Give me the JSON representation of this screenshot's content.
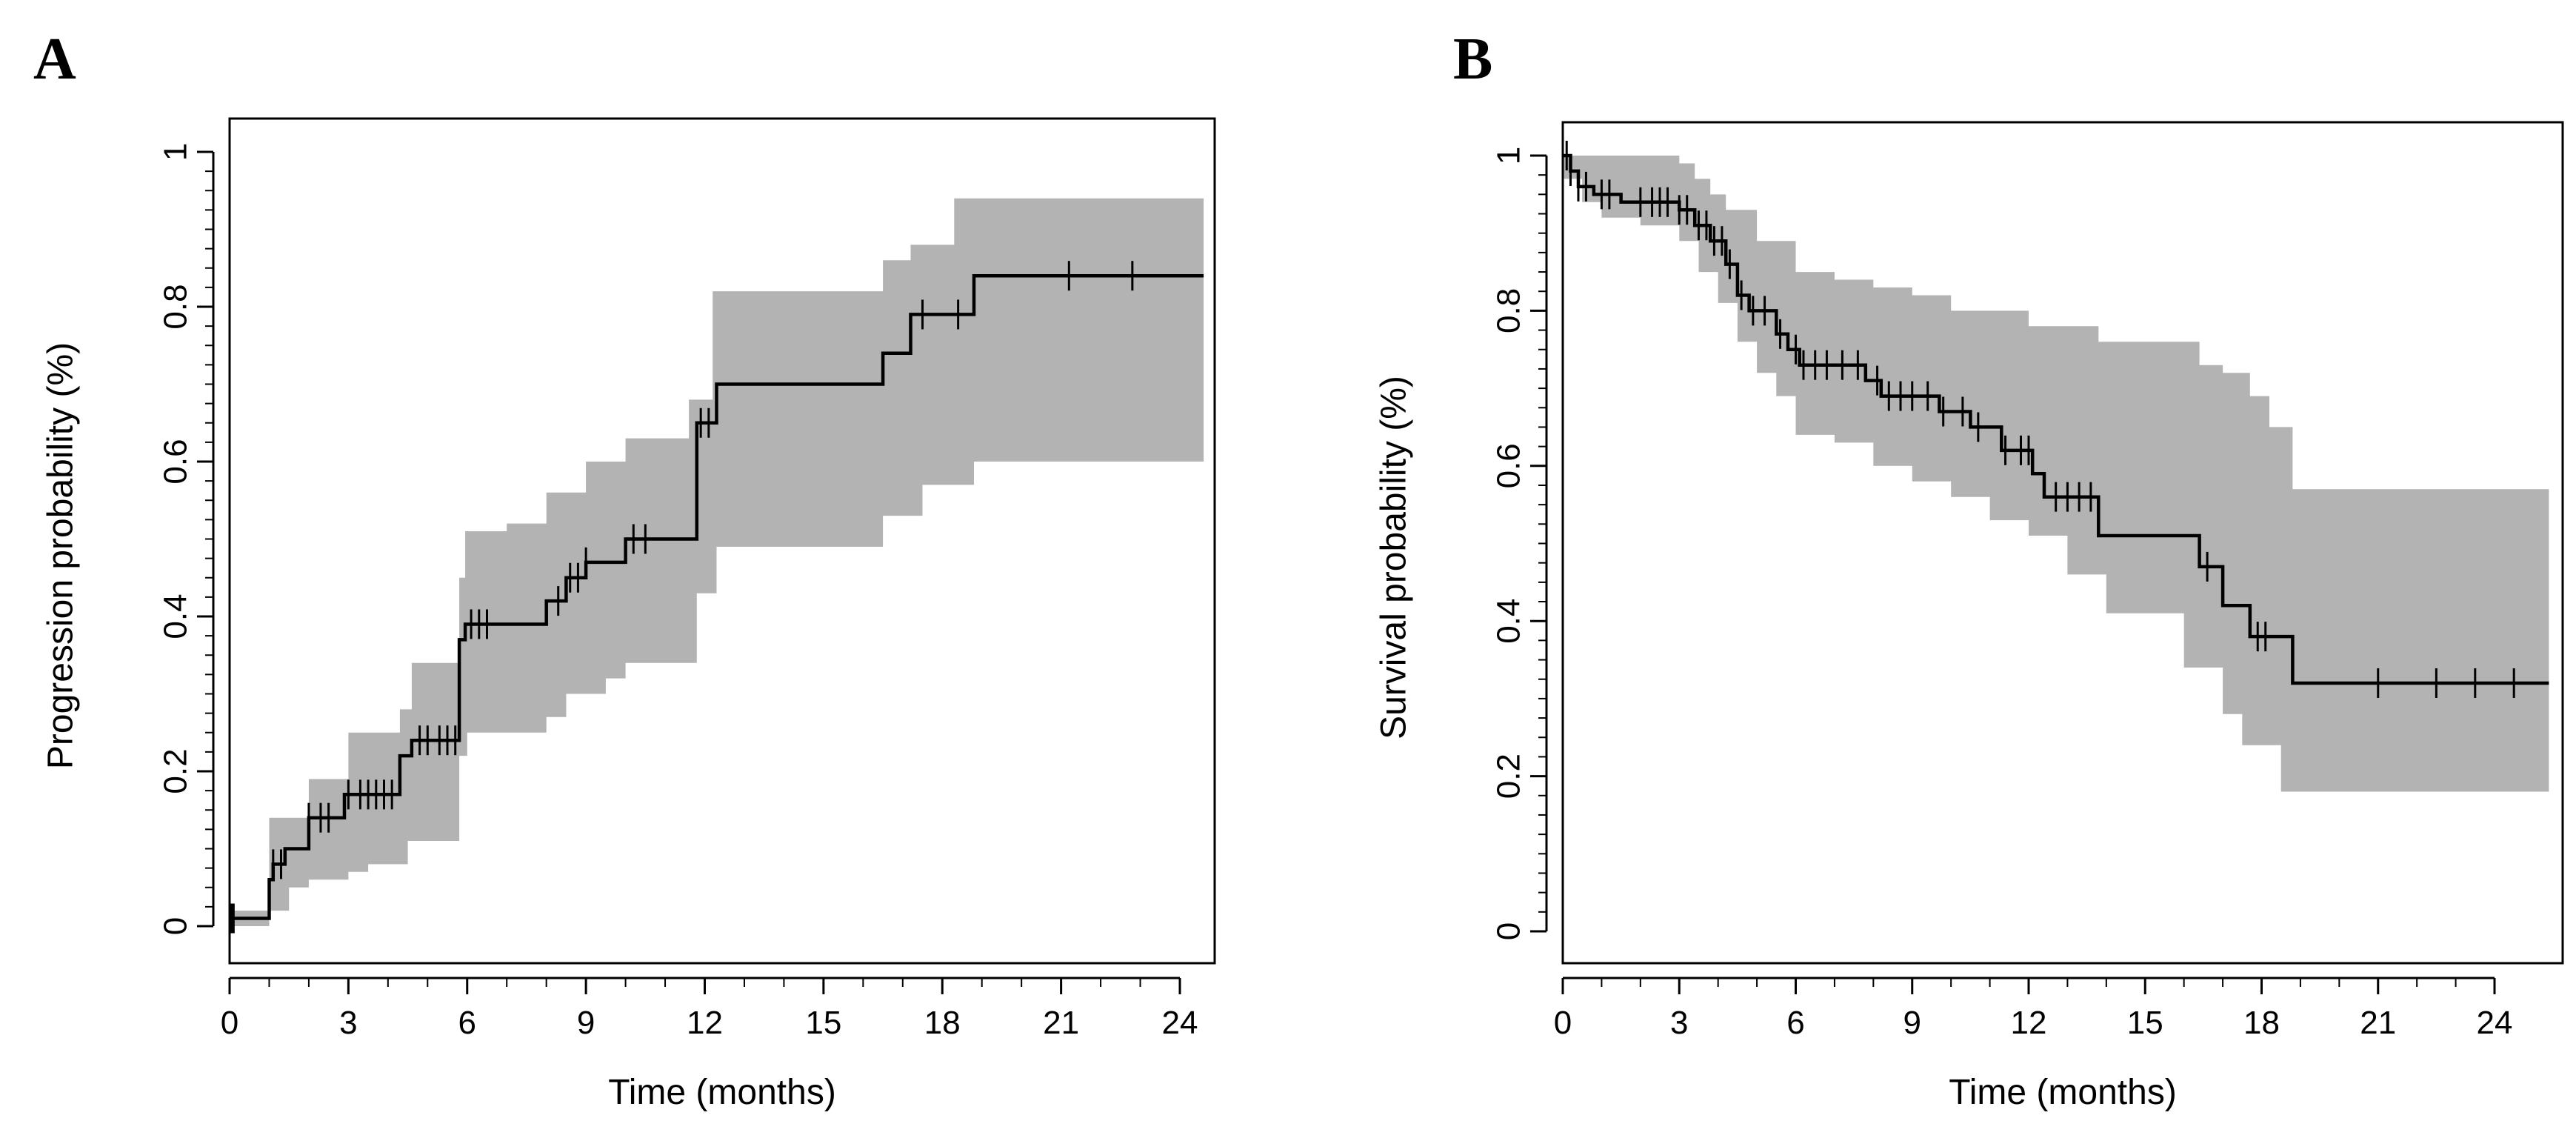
{
  "panels": [
    {
      "label": "A",
      "ylabel": "Progression probability (%)",
      "xlabel": "Time (months)",
      "xticks": [
        "0",
        "3",
        "6",
        "9",
        "12",
        "15",
        "18",
        "21",
        "24"
      ],
      "yticks": [
        "0",
        "0.2",
        "0.4",
        "0.6",
        "0.8",
        "1"
      ]
    },
    {
      "label": "B",
      "ylabel": "Survival probability (%)",
      "xlabel": "Time (months)",
      "xticks": [
        "0",
        "3",
        "6",
        "9",
        "12",
        "15",
        "18",
        "21",
        "24"
      ],
      "yticks": [
        "0",
        "0.2",
        "0.4",
        "0.6",
        "0.8",
        "1"
      ]
    }
  ],
  "chart_data": [
    {
      "type": "line",
      "subtype": "kaplan-meier step curve with shaded confidence band",
      "panel": "A",
      "xlabel": "Time (months)",
      "ylabel": "Progression probability (%)",
      "xlim": [
        0,
        26
      ],
      "ylim": [
        0,
        1.05
      ],
      "xticks": [
        0,
        3,
        6,
        9,
        12,
        15,
        18,
        21,
        24
      ],
      "yticks": [
        0,
        0.2,
        0.4,
        0.6,
        0.8,
        1
      ],
      "band_color": "#b3b3b3",
      "line_color": "#000000",
      "curve": [
        [
          0,
          0.01
        ],
        [
          1.0,
          0.06
        ],
        [
          1.1,
          0.08
        ],
        [
          1.4,
          0.1
        ],
        [
          2.0,
          0.14
        ],
        [
          2.9,
          0.17
        ],
        [
          4.3,
          0.22
        ],
        [
          4.6,
          0.24
        ],
        [
          5.8,
          0.37
        ],
        [
          5.95,
          0.39
        ],
        [
          8.0,
          0.42
        ],
        [
          8.5,
          0.45
        ],
        [
          9.0,
          0.47
        ],
        [
          10.0,
          0.5
        ],
        [
          11.8,
          0.65
        ],
        [
          12.3,
          0.7
        ],
        [
          16.5,
          0.74
        ],
        [
          17.2,
          0.79
        ],
        [
          18.8,
          0.84
        ],
        [
          24.6,
          0.84
        ]
      ],
      "lower": [
        [
          0,
          0.0
        ],
        [
          1.0,
          0.02
        ],
        [
          1.5,
          0.05
        ],
        [
          2.0,
          0.06
        ],
        [
          3.0,
          0.07
        ],
        [
          3.5,
          0.08
        ],
        [
          4.5,
          0.11
        ],
        [
          5.8,
          0.22
        ],
        [
          6.0,
          0.25
        ],
        [
          8.0,
          0.27
        ],
        [
          8.5,
          0.3
        ],
        [
          9.5,
          0.32
        ],
        [
          10.0,
          0.34
        ],
        [
          11.8,
          0.43
        ],
        [
          12.3,
          0.49
        ],
        [
          16.5,
          0.53
        ],
        [
          17.5,
          0.57
        ],
        [
          18.8,
          0.6
        ],
        [
          24.6,
          0.6
        ]
      ],
      "upper": [
        [
          0,
          0.02
        ],
        [
          1.0,
          0.14
        ],
        [
          2.0,
          0.19
        ],
        [
          3.0,
          0.25
        ],
        [
          4.3,
          0.28
        ],
        [
          4.6,
          0.34
        ],
        [
          5.8,
          0.45
        ],
        [
          5.95,
          0.51
        ],
        [
          7.0,
          0.52
        ],
        [
          8.0,
          0.56
        ],
        [
          9.0,
          0.6
        ],
        [
          10.0,
          0.63
        ],
        [
          11.6,
          0.68
        ],
        [
          12.2,
          0.82
        ],
        [
          16.5,
          0.86
        ],
        [
          17.2,
          0.88
        ],
        [
          18.3,
          0.94
        ],
        [
          24.6,
          0.94
        ]
      ],
      "censor_times": [
        0.05,
        0.1,
        1.1,
        1.3,
        2.0,
        2.3,
        2.5,
        3.0,
        3.3,
        3.5,
        3.7,
        3.9,
        4.1,
        4.8,
        5.0,
        5.3,
        5.5,
        5.7,
        6.1,
        6.3,
        6.5,
        8.3,
        8.6,
        8.8,
        9.0,
        10.2,
        10.5,
        11.9,
        12.1,
        17.5,
        18.4,
        21.2,
        22.8
      ]
    },
    {
      "type": "line",
      "subtype": "kaplan-meier step curve with shaded confidence band",
      "panel": "B",
      "xlabel": "Time (months)",
      "ylabel": "Survival probability (%)",
      "xlim": [
        0,
        26
      ],
      "ylim": [
        0,
        1.05
      ],
      "xticks": [
        0,
        3,
        6,
        9,
        12,
        15,
        18,
        21,
        24
      ],
      "yticks": [
        0,
        0.2,
        0.4,
        0.6,
        0.8,
        1
      ],
      "band_color": "#b3b3b3",
      "line_color": "#000000",
      "curve": [
        [
          0,
          1.0
        ],
        [
          0.2,
          0.98
        ],
        [
          0.4,
          0.96
        ],
        [
          0.8,
          0.95
        ],
        [
          1.5,
          0.94
        ],
        [
          3.0,
          0.93
        ],
        [
          3.4,
          0.91
        ],
        [
          3.8,
          0.89
        ],
        [
          4.2,
          0.86
        ],
        [
          4.5,
          0.82
        ],
        [
          4.8,
          0.8
        ],
        [
          5.5,
          0.77
        ],
        [
          5.8,
          0.75
        ],
        [
          6.1,
          0.73
        ],
        [
          7.8,
          0.71
        ],
        [
          8.2,
          0.69
        ],
        [
          9.7,
          0.67
        ],
        [
          10.5,
          0.65
        ],
        [
          11.3,
          0.62
        ],
        [
          12.1,
          0.59
        ],
        [
          12.4,
          0.56
        ],
        [
          13.8,
          0.51
        ],
        [
          16.4,
          0.47
        ],
        [
          17.0,
          0.42
        ],
        [
          17.7,
          0.38
        ],
        [
          18.8,
          0.32
        ],
        [
          25.4,
          0.32
        ]
      ],
      "lower": [
        [
          0,
          0.97
        ],
        [
          0.5,
          0.94
        ],
        [
          1.0,
          0.92
        ],
        [
          2.0,
          0.91
        ],
        [
          3.0,
          0.89
        ],
        [
          3.5,
          0.85
        ],
        [
          4.0,
          0.81
        ],
        [
          4.5,
          0.76
        ],
        [
          5.0,
          0.72
        ],
        [
          5.5,
          0.69
        ],
        [
          6.0,
          0.64
        ],
        [
          7.0,
          0.63
        ],
        [
          8.0,
          0.6
        ],
        [
          9.0,
          0.58
        ],
        [
          10.0,
          0.56
        ],
        [
          11.0,
          0.53
        ],
        [
          12.0,
          0.51
        ],
        [
          13.0,
          0.46
        ],
        [
          14.0,
          0.41
        ],
        [
          16.0,
          0.34
        ],
        [
          17.0,
          0.28
        ],
        [
          17.5,
          0.24
        ],
        [
          18.5,
          0.18
        ],
        [
          25.4,
          0.18
        ]
      ],
      "upper": [
        [
          0,
          1.0
        ],
        [
          3.0,
          0.99
        ],
        [
          3.4,
          0.97
        ],
        [
          3.8,
          0.95
        ],
        [
          4.2,
          0.93
        ],
        [
          5.0,
          0.89
        ],
        [
          6.0,
          0.85
        ],
        [
          7.0,
          0.84
        ],
        [
          8.0,
          0.83
        ],
        [
          9.0,
          0.82
        ],
        [
          10.0,
          0.8
        ],
        [
          12.0,
          0.78
        ],
        [
          13.8,
          0.76
        ],
        [
          16.4,
          0.73
        ],
        [
          17.0,
          0.72
        ],
        [
          17.7,
          0.69
        ],
        [
          18.2,
          0.65
        ],
        [
          18.8,
          0.57
        ],
        [
          25.4,
          0.57
        ]
      ],
      "censor_times": [
        0.1,
        0.2,
        0.4,
        0.6,
        1.0,
        1.2,
        2.0,
        2.3,
        2.5,
        2.7,
        3.0,
        3.2,
        3.5,
        3.7,
        3.9,
        4.1,
        4.3,
        4.6,
        4.9,
        5.2,
        5.6,
        6.0,
        6.2,
        6.5,
        6.8,
        7.2,
        7.6,
        8.1,
        8.4,
        8.7,
        9.0,
        9.4,
        9.8,
        10.3,
        10.7,
        11.4,
        11.8,
        12.0,
        12.7,
        13.0,
        13.3,
        13.6,
        16.6,
        17.9,
        18.1,
        21.0,
        22.5,
        23.5,
        24.5
      ]
    }
  ]
}
